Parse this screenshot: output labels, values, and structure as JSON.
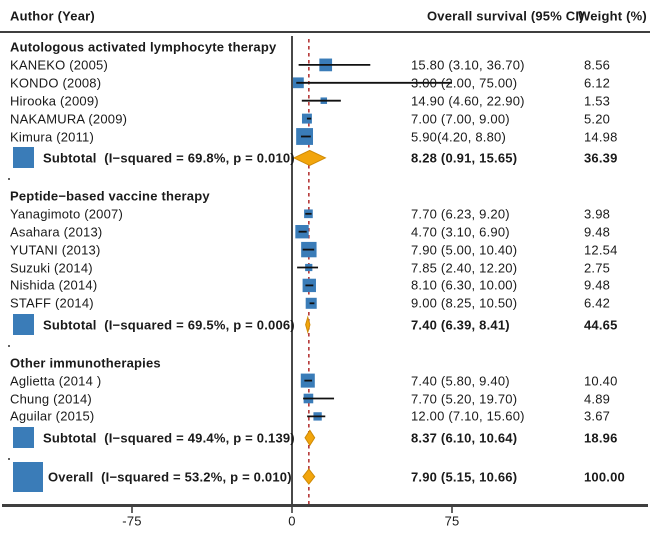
{
  "header": {
    "author": "Author (Year)",
    "effect": "Overall survival (95% CI)",
    "weight": "Weight (%)"
  },
  "axis": {
    "ticks": [
      {
        "value": -75,
        "label": "-75"
      },
      {
        "value": 0,
        "label": "0"
      },
      {
        "value": 75,
        "label": "75"
      }
    ],
    "xlim": [
      -137,
      168
    ]
  },
  "colors": {
    "square": "#3a7cb8",
    "diamond_fill": "#f2a50c",
    "diamond_stroke": "#cf8a06",
    "ci_line": "#111111",
    "zero_line": "#1a1a1a",
    "null_line": "#b02a2a",
    "axis": "#3f3f3f",
    "text": "#1a1a1a"
  },
  "chart_data": {
    "type": "forest",
    "title": "",
    "null_line_value": 7.9,
    "groups": [
      {
        "heading": "Autologous activated lymphocyte therapy",
        "studies": [
          {
            "label": "KANEKO (2005)",
            "effect_text": "15.80 (3.10, 36.70)",
            "est": 15.8,
            "lo": 3.1,
            "hi": 36.7,
            "weight": 8.56,
            "weight_text": "8.56"
          },
          {
            "label": "KONDO (2008)",
            "effect_text": "3.00 (2.00, 75.00)",
            "est": 3.0,
            "lo": 2.0,
            "hi": 75.0,
            "weight": 6.12,
            "weight_text": "6.12"
          },
          {
            "label": "Hirooka (2009)",
            "effect_text": "14.90 (4.60, 22.90)",
            "est": 14.9,
            "lo": 4.6,
            "hi": 22.9,
            "weight": 1.53,
            "weight_text": "1.53"
          },
          {
            "label": "NAKAMURA (2009)",
            "effect_text": "7.00 (7.00, 9.00)",
            "est": 7.0,
            "lo": 7.0,
            "hi": 9.0,
            "weight": 5.2,
            "weight_text": "5.20"
          },
          {
            "label": "Kimura (2011)",
            "effect_text": "5.90(4.20, 8.80)",
            "est": 5.9,
            "lo": 4.2,
            "hi": 8.8,
            "weight": 14.98,
            "weight_text": "14.98"
          }
        ],
        "subtotal": {
          "label": "Subtotal  (I−squared = 69.8%, p = 0.010)",
          "effect_text": "8.28 (0.91, 15.65)",
          "est": 8.28,
          "lo": 0.91,
          "hi": 15.65,
          "weight_text": "36.39"
        }
      },
      {
        "heading": "Peptide−based vaccine therapy",
        "studies": [
          {
            "label": "Yanagimoto (2007)",
            "effect_text": "7.70 (6.23, 9.20)",
            "est": 7.7,
            "lo": 6.23,
            "hi": 9.2,
            "weight": 3.98,
            "weight_text": "3.98"
          },
          {
            "label": "Asahara (2013)",
            "effect_text": "4.70 (3.10, 6.90)",
            "est": 4.7,
            "lo": 3.1,
            "hi": 6.9,
            "weight": 9.48,
            "weight_text": "9.48"
          },
          {
            "label": "YUTANI (2013)",
            "effect_text": "7.90 (5.00, 10.40)",
            "est": 7.9,
            "lo": 5.0,
            "hi": 10.4,
            "weight": 12.54,
            "weight_text": "12.54"
          },
          {
            "label": "Suzuki (2014)",
            "effect_text": "7.85 (2.40, 12.20)",
            "est": 7.85,
            "lo": 2.4,
            "hi": 12.2,
            "weight": 2.75,
            "weight_text": "2.75"
          },
          {
            "label": "Nishida (2014)",
            "effect_text": "8.10 (6.30, 10.00)",
            "est": 8.1,
            "lo": 6.3,
            "hi": 10.0,
            "weight": 9.48,
            "weight_text": "9.48"
          },
          {
            "label": "STAFF (2014)",
            "effect_text": "9.00 (8.25, 10.50)",
            "est": 9.0,
            "lo": 8.25,
            "hi": 10.5,
            "weight": 6.42,
            "weight_text": "6.42"
          }
        ],
        "subtotal": {
          "label": "Subtotal  (I−squared = 69.5%, p = 0.006)",
          "effect_text": "7.40 (6.39, 8.41)",
          "est": 7.4,
          "lo": 6.39,
          "hi": 8.41,
          "weight_text": "44.65"
        }
      },
      {
        "heading": "Other immunotherapies",
        "studies": [
          {
            "label": "Aglietta (2014 )",
            "effect_text": "7.40 (5.80, 9.40)",
            "est": 7.4,
            "lo": 5.8,
            "hi": 9.4,
            "weight": 10.4,
            "weight_text": "10.40"
          },
          {
            "label": "Chung (2014)",
            "effect_text": "7.70 (5.20, 19.70)",
            "est": 7.7,
            "lo": 5.2,
            "hi": 19.7,
            "weight": 4.89,
            "weight_text": "4.89"
          },
          {
            "label": "Aguilar (2015)",
            "effect_text": "12.00 (7.10, 15.60)",
            "est": 12.0,
            "lo": 7.1,
            "hi": 15.6,
            "weight": 3.67,
            "weight_text": "3.67"
          }
        ],
        "subtotal": {
          "label": "Subtotal  (I−squared = 49.4%, p = 0.139)",
          "effect_text": "8.37 (6.10, 10.64)",
          "est": 8.37,
          "lo": 6.1,
          "hi": 10.64,
          "weight_text": "18.96"
        }
      }
    ],
    "overall": {
      "label": "Overall  (I−squared = 53.2%, p = 0.010)",
      "effect_text": "7.90 (5.15, 10.66)",
      "est": 7.9,
      "lo": 5.15,
      "hi": 10.66,
      "weight_text": "100.00"
    }
  }
}
